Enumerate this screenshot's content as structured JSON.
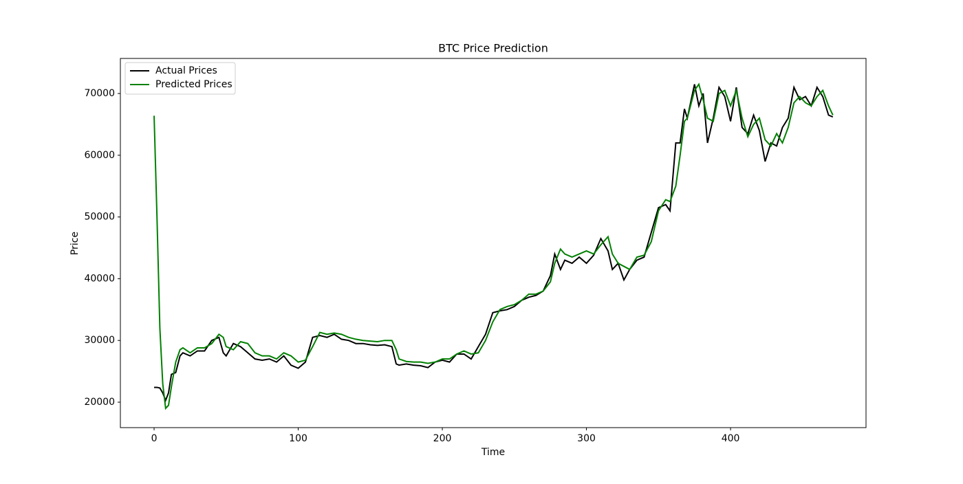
{
  "chart_data": {
    "type": "line",
    "title": "BTC Price Prediction",
    "x_label": "Time",
    "y_label": "Price",
    "x": [
      0,
      2,
      4,
      6,
      8,
      10,
      12,
      15,
      18,
      20,
      25,
      30,
      35,
      40,
      45,
      48,
      50,
      55,
      60,
      65,
      70,
      75,
      80,
      85,
      90,
      95,
      100,
      105,
      110,
      115,
      120,
      125,
      130,
      135,
      140,
      145,
      150,
      155,
      160,
      165,
      168,
      170,
      175,
      180,
      185,
      190,
      195,
      200,
      205,
      210,
      215,
      220,
      225,
      230,
      235,
      240,
      245,
      250,
      255,
      260,
      265,
      270,
      275,
      278,
      282,
      285,
      290,
      295,
      300,
      305,
      310,
      315,
      318,
      322,
      326,
      330,
      335,
      340,
      345,
      350,
      355,
      358,
      362,
      365,
      368,
      370,
      375,
      378,
      381,
      384,
      388,
      392,
      396,
      400,
      404,
      408,
      412,
      416,
      420,
      424,
      428,
      432,
      436,
      440,
      444,
      448,
      452,
      456,
      460,
      464,
      468,
      471
    ],
    "series": [
      {
        "name": "Actual Prices",
        "color": "#000000",
        "values": [
          22400,
          22400,
          22300,
          21500,
          20300,
          21500,
          24500,
          24800,
          27500,
          28000,
          27500,
          28300,
          28300,
          30000,
          30500,
          28000,
          27500,
          29500,
          29000,
          28000,
          27000,
          26800,
          27000,
          26500,
          27500,
          26000,
          25500,
          26500,
          30500,
          30800,
          30500,
          31000,
          30200,
          30000,
          29500,
          29500,
          29300,
          29200,
          29300,
          29000,
          26200,
          26000,
          26200,
          26000,
          25900,
          25600,
          26500,
          26800,
          26500,
          27800,
          27800,
          27000,
          29000,
          31000,
          34500,
          34800,
          35000,
          35500,
          36500,
          37000,
          37300,
          38000,
          40500,
          44000,
          41500,
          43000,
          42500,
          43500,
          42500,
          43800,
          46500,
          44500,
          41500,
          42500,
          39800,
          41500,
          43000,
          43500,
          47500,
          51500,
          52000,
          51000,
          62000,
          62000,
          67500,
          66000,
          71500,
          68000,
          70000,
          62000,
          66000,
          71000,
          69500,
          65500,
          71000,
          64500,
          63500,
          66500,
          64000,
          59000,
          62000,
          61500,
          64500,
          66000,
          71000,
          69000,
          69500,
          68000,
          71000,
          69500,
          66500,
          66200
        ]
      },
      {
        "name": "Predicted Prices",
        "color": "#008000",
        "values": [
          66400,
          50000,
          32000,
          23000,
          19000,
          19500,
          22500,
          26500,
          28500,
          28800,
          28000,
          28800,
          28800,
          29500,
          31000,
          30500,
          29000,
          28500,
          29800,
          29500,
          28000,
          27500,
          27500,
          27000,
          28000,
          27500,
          26500,
          26800,
          29000,
          31300,
          31000,
          31200,
          31000,
          30500,
          30200,
          30000,
          29900,
          29800,
          30000,
          30000,
          28500,
          27000,
          26600,
          26500,
          26500,
          26300,
          26500,
          27000,
          27000,
          27800,
          28300,
          27800,
          28000,
          30000,
          33000,
          35000,
          35500,
          35800,
          36500,
          37500,
          37500,
          38000,
          39500,
          42500,
          44800,
          44000,
          43500,
          44000,
          44500,
          44000,
          45500,
          46800,
          44000,
          42500,
          42000,
          41500,
          43500,
          43800,
          46000,
          51000,
          52800,
          52500,
          55000,
          60000,
          65500,
          66000,
          70500,
          71500,
          69000,
          66000,
          65500,
          70000,
          70500,
          68000,
          70500,
          66000,
          63000,
          65000,
          66000,
          62500,
          61500,
          63500,
          62000,
          64500,
          68500,
          69500,
          68500,
          68000,
          69500,
          70500,
          68000,
          66500
        ]
      }
    ],
    "xlim": [
      -23.4,
      494
    ],
    "ylim": [
      15880,
      75680
    ],
    "xticks": [
      0,
      100,
      200,
      300,
      400
    ],
    "yticks": [
      20000,
      30000,
      40000,
      50000,
      60000,
      70000
    ],
    "legend": "upper left"
  }
}
